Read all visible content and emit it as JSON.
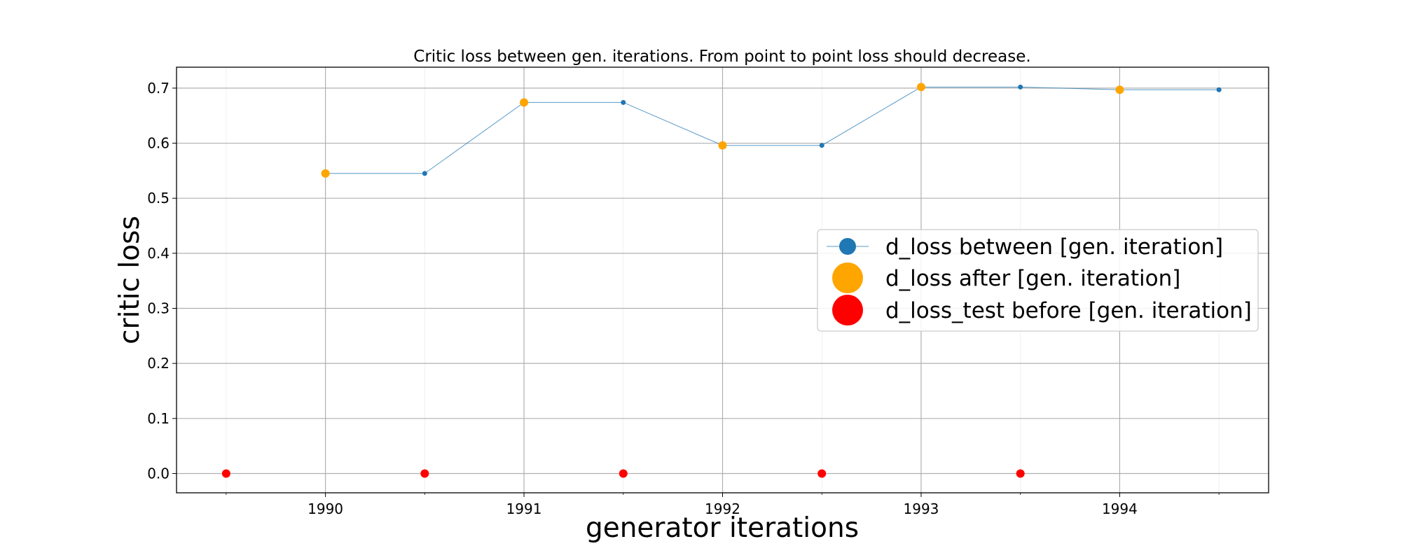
{
  "chart_data": {
    "type": "line",
    "title": "Critic loss between gen. iterations. From point to point loss should decrease.",
    "xlabel": "generator iterations",
    "ylabel": "critic loss",
    "xlim": [
      1989.25,
      1994.75
    ],
    "ylim": [
      -0.035,
      0.738
    ],
    "xticks": [
      1990,
      1991,
      1992,
      1993,
      1994
    ],
    "xtick_labels": [
      "1990",
      "1991",
      "1992",
      "1993",
      "1994"
    ],
    "xminor": [
      1989.5,
      1990.5,
      1991.5,
      1992.5,
      1993.5,
      1994.5
    ],
    "yticks": [
      0.0,
      0.1,
      0.2,
      0.3,
      0.4,
      0.5,
      0.6,
      0.7
    ],
    "ytick_labels": [
      "0.0",
      "0.1",
      "0.2",
      "0.3",
      "0.4",
      "0.5",
      "0.6",
      "0.7"
    ],
    "grid": true,
    "legend_position": "center-right",
    "series": [
      {
        "name": "d_loss between [gen. iteration]",
        "style": "line-marker",
        "color": "#1f77b4",
        "x": [
          1990,
          1990.5,
          1991,
          1991.5,
          1992,
          1992.5,
          1993,
          1993.5,
          1994,
          1994.5
        ],
        "y": [
          0.545,
          0.545,
          0.674,
          0.674,
          0.596,
          0.596,
          0.702,
          0.702,
          0.697,
          0.697
        ]
      },
      {
        "name": "d_loss after [gen. iteration]",
        "style": "marker",
        "color": "#ffa500",
        "x": [
          1990,
          1991,
          1992,
          1993,
          1994
        ],
        "y": [
          0.545,
          0.674,
          0.596,
          0.702,
          0.697
        ]
      },
      {
        "name": "d_loss_test before [gen. iteration]",
        "style": "marker",
        "color": "#ff0000",
        "x": [
          1989.5,
          1990.5,
          1991.5,
          1992.5,
          1993.5
        ],
        "y": [
          0.0,
          0.0,
          0.0,
          0.0,
          0.0
        ]
      }
    ]
  }
}
